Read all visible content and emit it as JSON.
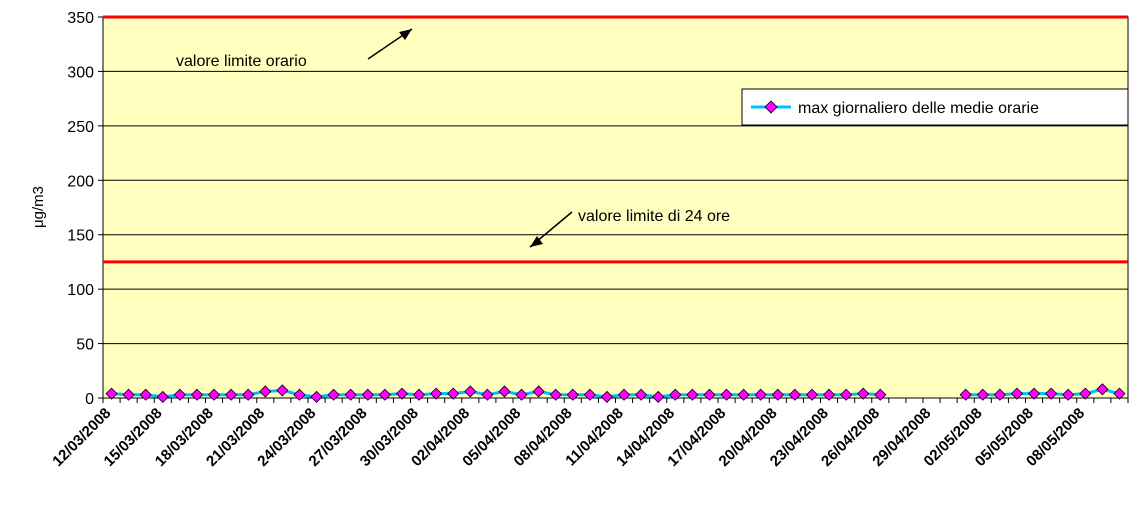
{
  "chart_data": {
    "type": "line",
    "ylabel": "μg/m3",
    "ylim": [
      0,
      350
    ],
    "yticks": [
      0,
      50,
      100,
      150,
      200,
      250,
      300,
      350
    ],
    "x_tick_labels": [
      "12/03/2008",
      "15/03/2008",
      "18/03/2008",
      "21/03/2008",
      "24/03/2008",
      "27/03/2008",
      "30/03/2008",
      "02/04/2008",
      "05/04/2008",
      "08/04/2008",
      "11/04/2008",
      "14/04/2008",
      "17/04/2008",
      "20/04/2008",
      "23/04/2008",
      "26/04/2008",
      "29/04/2008",
      "02/05/2008",
      "05/05/2008",
      "08/05/2008"
    ],
    "x_start": "12/03/2008",
    "grid": "horizontal",
    "legend_position": "right",
    "plot_background": "#ffffc0",
    "series": [
      {
        "name": "max giornaliero delle medie orarie",
        "line_color": "#00bfff",
        "marker_color": "#ff00ff",
        "values": [
          4,
          3,
          3,
          1,
          3,
          3,
          3,
          3,
          3,
          6,
          7,
          3,
          1,
          3,
          3,
          3,
          3,
          4,
          3,
          4,
          4,
          6,
          3,
          6,
          3,
          6,
          3,
          3,
          3,
          1,
          3,
          3,
          1,
          3,
          3,
          3,
          3,
          3,
          3,
          3,
          3,
          3,
          3,
          3,
          4,
          3,
          null,
          null,
          null,
          null,
          3,
          3,
          3,
          4,
          4,
          4,
          3,
          4,
          8,
          4
        ]
      }
    ],
    "reference_lines": [
      {
        "value": 350,
        "color": "#ff0000",
        "label": "valore limite orario"
      },
      {
        "value": 125,
        "color": "#ff0000",
        "label": "valore limite di 24 ore"
      }
    ]
  }
}
